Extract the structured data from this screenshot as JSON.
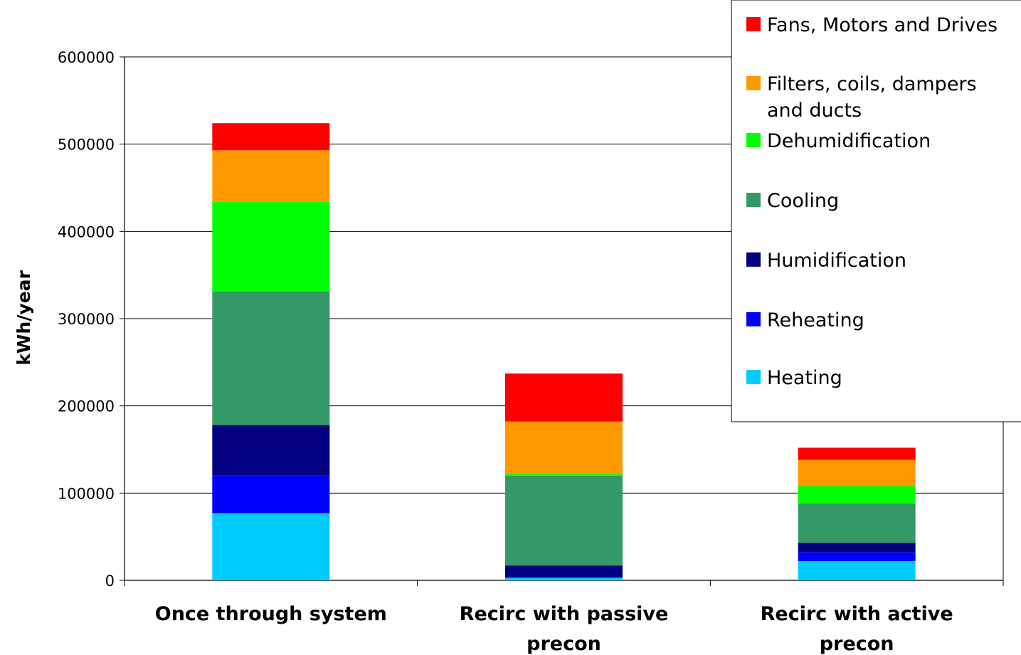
{
  "chart_data": {
    "type": "bar",
    "stacked": true,
    "ylabel": "kWh/year",
    "xlabel": "",
    "ylim": [
      0,
      600000
    ],
    "yticks": [
      0,
      100000,
      200000,
      300000,
      400000,
      500000,
      600000
    ],
    "ytick_labels": [
      "0",
      "100000",
      "200000",
      "300000",
      "400000",
      "500000",
      "600000"
    ],
    "grid": "horizontal",
    "legend_position": "top-right",
    "categories": [
      [
        "Once through system"
      ],
      [
        "Recirc with passive",
        "precon"
      ],
      [
        "Recirc with active",
        "precon"
      ]
    ],
    "series": [
      {
        "name": "Heating",
        "color": "#00CCFF",
        "values": [
          77000,
          3000,
          22000
        ]
      },
      {
        "name": "Reheating",
        "color": "#0000FF",
        "values": [
          43000,
          0,
          10000
        ]
      },
      {
        "name": "Humidification",
        "color": "#000080",
        "values": [
          58000,
          14000,
          11000
        ]
      },
      {
        "name": "Cooling",
        "color": "#339966",
        "values": [
          153000,
          103000,
          45000
        ]
      },
      {
        "name": "Dehumidification",
        "color": "#00FF00",
        "values": [
          103000,
          2000,
          20000
        ]
      },
      {
        "name": "Filters, coils, dampers and ducts",
        "legend_lines": [
          "Filters, coils, dampers",
          "and ducts"
        ],
        "color": "#FF9900",
        "values": [
          59000,
          60000,
          30000
        ]
      },
      {
        "name": "Fans, Motors and Drives",
        "color": "#FF0000",
        "values": [
          31000,
          55000,
          14000
        ]
      }
    ]
  }
}
